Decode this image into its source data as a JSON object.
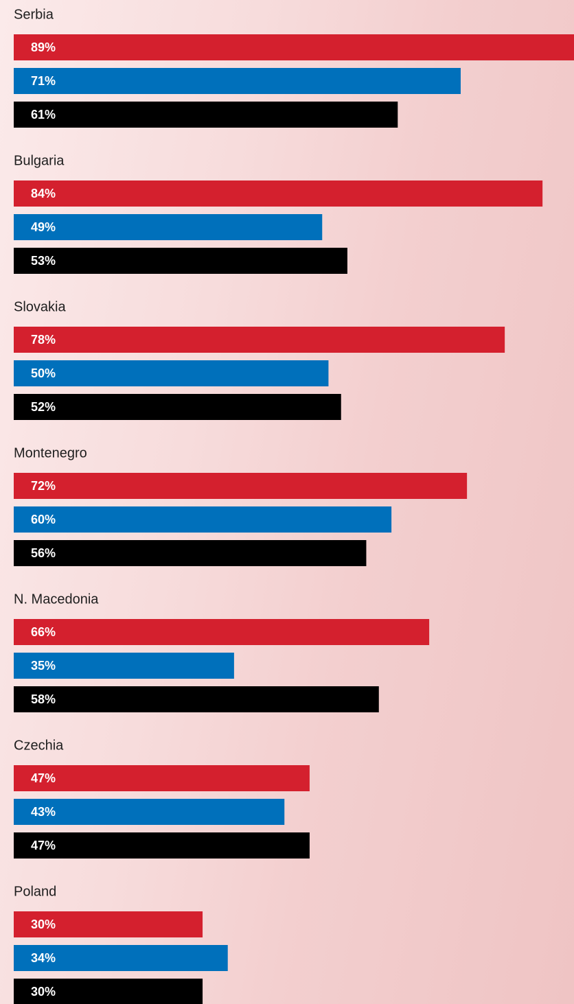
{
  "chart_data": {
    "type": "grouped-hbar",
    "categories": [
      "Serbia",
      "Bulgaria",
      "Slovakia",
      "Montenegro",
      "N. Macedonia",
      "Czechia",
      "Poland"
    ],
    "series": [
      {
        "color": "#d4202e",
        "values": [
          89,
          84,
          78,
          72,
          66,
          47,
          30
        ],
        "value_labels": [
          "89%",
          "84%",
          "78%",
          "72%",
          "66%",
          "47%",
          "30%"
        ]
      },
      {
        "color": "#0070bb",
        "values": [
          71,
          49,
          50,
          60,
          35,
          43,
          34
        ],
        "value_labels": [
          "71%",
          "49%",
          "50%",
          "60%",
          "35%",
          "43%",
          "34%"
        ]
      },
      {
        "color": "#000000",
        "values": [
          61,
          53,
          52,
          56,
          58,
          47,
          30
        ],
        "value_labels": [
          "61%",
          "53%",
          "52%",
          "56%",
          "58%",
          "47%",
          "30%"
        ]
      }
    ],
    "xlim": [
      0,
      89
    ]
  }
}
